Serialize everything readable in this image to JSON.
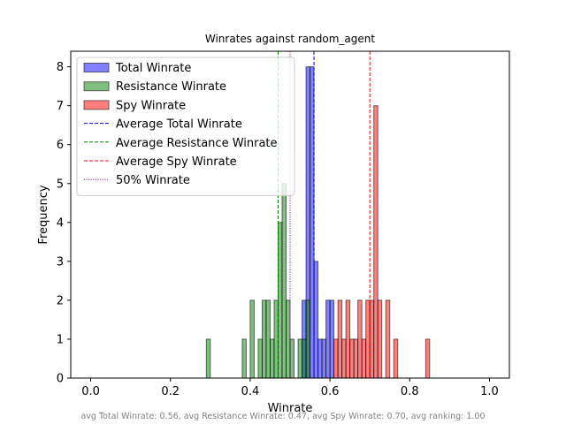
{
  "chart_data": {
    "type": "histogram",
    "title": "Winrates against random_agent",
    "xlabel": "Winrate",
    "ylabel": "Frequency",
    "xlim": [
      -0.05,
      1.05
    ],
    "ylim": [
      0,
      8.4
    ],
    "x_ticks": [
      "0.0",
      "0.2",
      "0.4",
      "0.6",
      "0.8",
      "1.0"
    ],
    "y_ticks": [
      "0",
      "1",
      "2",
      "3",
      "4",
      "5",
      "6",
      "7",
      "8"
    ],
    "bin_width": 0.01,
    "series": [
      {
        "name": "Total Winrate",
        "color": "#0000ff",
        "bins": [
          {
            "x": 0.53,
            "count": 2
          },
          {
            "x": 0.54,
            "count": 8
          },
          {
            "x": 0.55,
            "count": 8
          },
          {
            "x": 0.56,
            "count": 3
          },
          {
            "x": 0.57,
            "count": 1
          },
          {
            "x": 0.58,
            "count": 1
          },
          {
            "x": 0.59,
            "count": 2
          },
          {
            "x": 0.6,
            "count": 2
          }
        ]
      },
      {
        "name": "Resistance Winrate",
        "color": "#008000",
        "bins": [
          {
            "x": 0.29,
            "count": 1
          },
          {
            "x": 0.38,
            "count": 1
          },
          {
            "x": 0.4,
            "count": 2
          },
          {
            "x": 0.42,
            "count": 1
          },
          {
            "x": 0.43,
            "count": 2
          },
          {
            "x": 0.44,
            "count": 2
          },
          {
            "x": 0.45,
            "count": 1
          },
          {
            "x": 0.46,
            "count": 2
          },
          {
            "x": 0.47,
            "count": 4
          },
          {
            "x": 0.48,
            "count": 5
          },
          {
            "x": 0.49,
            "count": 2
          },
          {
            "x": 0.5,
            "count": 1
          },
          {
            "x": 0.52,
            "count": 1
          },
          {
            "x": 0.53,
            "count": 1
          },
          {
            "x": 0.54,
            "count": 2
          }
        ]
      },
      {
        "name": "Spy Winrate",
        "color": "#ff0000",
        "bins": [
          {
            "x": 0.61,
            "count": 1
          },
          {
            "x": 0.62,
            "count": 2
          },
          {
            "x": 0.63,
            "count": 1
          },
          {
            "x": 0.64,
            "count": 2
          },
          {
            "x": 0.65,
            "count": 1
          },
          {
            "x": 0.66,
            "count": 1
          },
          {
            "x": 0.67,
            "count": 2
          },
          {
            "x": 0.68,
            "count": 1
          },
          {
            "x": 0.69,
            "count": 2
          },
          {
            "x": 0.7,
            "count": 2
          },
          {
            "x": 0.71,
            "count": 7
          },
          {
            "x": 0.72,
            "count": 2
          },
          {
            "x": 0.74,
            "count": 2
          },
          {
            "x": 0.76,
            "count": 1
          },
          {
            "x": 0.84,
            "count": 1
          }
        ]
      }
    ],
    "reference_lines": [
      {
        "name": "Average Total Winrate",
        "x": 0.56,
        "color": "#0000ff",
        "style": "dashed"
      },
      {
        "name": "Average Resistance Winrate",
        "x": 0.47,
        "color": "#008000",
        "style": "dashed"
      },
      {
        "name": "Average Spy Winrate",
        "x": 0.7,
        "color": "#ff0000",
        "style": "dashed"
      },
      {
        "name": "50% Winrate",
        "x": 0.5,
        "color": "#800080",
        "style": "dotted"
      }
    ],
    "legend_position": "upper-left",
    "footer": "avg Total Winrate: 0.56, avg Resistance Winrate: 0.47, avg Spy Winrate: 0.70, avg ranking: 1.00"
  }
}
